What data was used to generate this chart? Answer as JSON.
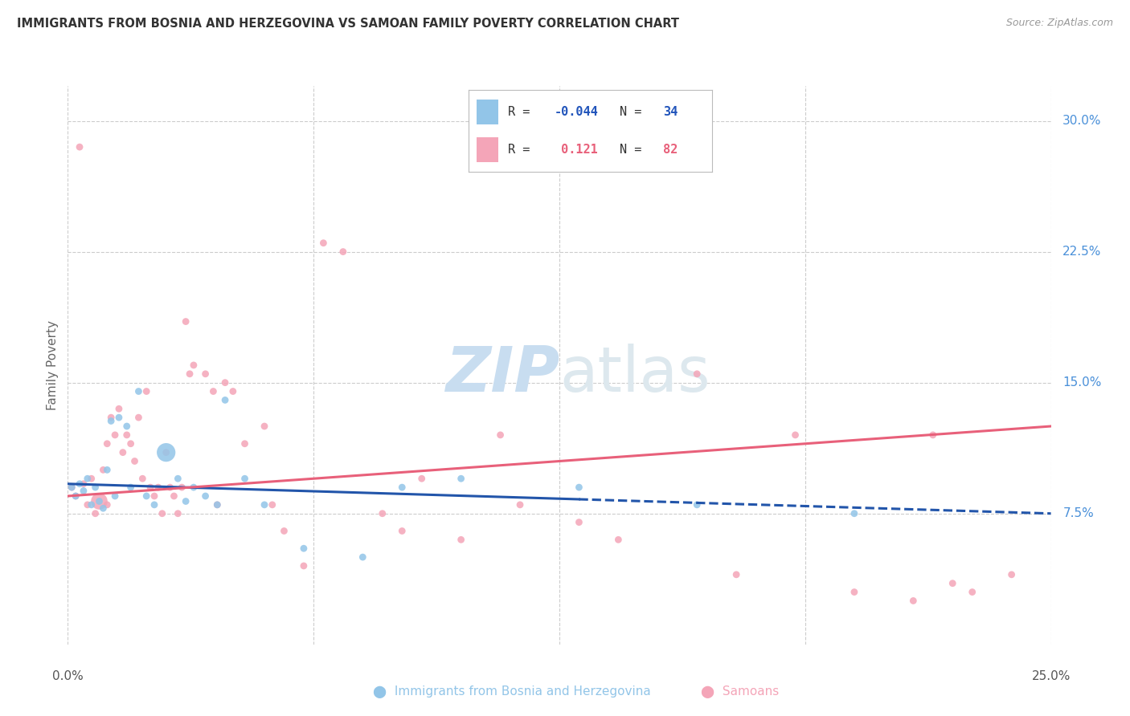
{
  "title": "IMMIGRANTS FROM BOSNIA AND HERZEGOVINA VS SAMOAN FAMILY POVERTY CORRELATION CHART",
  "source": "Source: ZipAtlas.com",
  "ylabel": "Family Poverty",
  "right_yticks": [
    7.5,
    15.0,
    22.5,
    30.0
  ],
  "blue_color": "#92c5e8",
  "pink_color": "#f4a5b8",
  "blue_line_color": "#2255aa",
  "pink_line_color": "#e8607a",
  "watermark_color": "#ddeeff",
  "xlim": [
    0,
    25
  ],
  "ylim": [
    0,
    32
  ],
  "blue_line": {
    "x0": 0,
    "y0": 9.2,
    "x1": 25,
    "y1": 7.5
  },
  "blue_line_solid_end": 13.0,
  "pink_line": {
    "x0": 0,
    "y0": 8.5,
    "x1": 25,
    "y1": 12.5
  },
  "blue_series_x": [
    0.1,
    0.2,
    0.3,
    0.4,
    0.5,
    0.6,
    0.7,
    0.8,
    0.9,
    1.0,
    1.1,
    1.2,
    1.3,
    1.5,
    1.6,
    1.8,
    2.0,
    2.2,
    2.5,
    2.8,
    3.0,
    3.2,
    3.5,
    3.8,
    4.0,
    4.5,
    5.0,
    6.0,
    7.5,
    8.5,
    10.0,
    13.0,
    16.0,
    20.0
  ],
  "blue_series_y": [
    9.0,
    8.5,
    9.2,
    8.8,
    9.5,
    8.0,
    9.0,
    8.2,
    7.8,
    10.0,
    12.8,
    8.5,
    13.0,
    12.5,
    9.0,
    14.5,
    8.5,
    8.0,
    11.0,
    9.5,
    8.2,
    9.0,
    8.5,
    8.0,
    14.0,
    9.5,
    8.0,
    5.5,
    5.0,
    9.0,
    9.5,
    9.0,
    8.0,
    7.5
  ],
  "blue_series_sizes": [
    40,
    40,
    40,
    40,
    40,
    40,
    40,
    40,
    40,
    40,
    40,
    40,
    40,
    40,
    40,
    40,
    40,
    40,
    280,
    40,
    40,
    40,
    40,
    40,
    40,
    40,
    40,
    40,
    40,
    40,
    40,
    40,
    40,
    40
  ],
  "pink_series_x": [
    0.1,
    0.2,
    0.3,
    0.4,
    0.5,
    0.6,
    0.7,
    0.8,
    0.9,
    1.0,
    1.0,
    1.1,
    1.2,
    1.3,
    1.4,
    1.5,
    1.6,
    1.7,
    1.8,
    1.9,
    2.0,
    2.1,
    2.2,
    2.3,
    2.4,
    2.5,
    2.6,
    2.7,
    2.8,
    2.9,
    3.0,
    3.1,
    3.2,
    3.5,
    3.7,
    3.8,
    4.0,
    4.2,
    4.5,
    5.0,
    5.2,
    5.5,
    6.0,
    6.5,
    7.0,
    8.0,
    8.5,
    9.0,
    10.0,
    11.0,
    11.5,
    13.0,
    14.0,
    16.0,
    17.0,
    18.5,
    20.0,
    21.5,
    22.0,
    22.5,
    23.0,
    24.0
  ],
  "pink_series_y": [
    9.0,
    8.5,
    28.5,
    9.2,
    8.0,
    9.5,
    7.5,
    8.2,
    10.0,
    11.5,
    8.0,
    13.0,
    12.0,
    13.5,
    11.0,
    12.0,
    11.5,
    10.5,
    13.0,
    9.5,
    14.5,
    9.0,
    8.5,
    9.0,
    7.5,
    11.0,
    9.0,
    8.5,
    7.5,
    9.0,
    18.5,
    15.5,
    16.0,
    15.5,
    14.5,
    8.0,
    15.0,
    14.5,
    11.5,
    12.5,
    8.0,
    6.5,
    4.5,
    23.0,
    22.5,
    7.5,
    6.5,
    9.5,
    6.0,
    12.0,
    8.0,
    7.0,
    6.0,
    15.5,
    4.0,
    12.0,
    3.0,
    2.5,
    12.0,
    3.5,
    3.0,
    4.0
  ],
  "pink_series_sizes": [
    40,
    40,
    40,
    40,
    40,
    40,
    40,
    220,
    40,
    40,
    40,
    40,
    40,
    40,
    40,
    40,
    40,
    40,
    40,
    40,
    40,
    40,
    40,
    40,
    40,
    40,
    40,
    40,
    40,
    40,
    40,
    40,
    40,
    40,
    40,
    40,
    40,
    40,
    40,
    40,
    40,
    40,
    40,
    40,
    40,
    40,
    40,
    40,
    40,
    40,
    40,
    40,
    40,
    40,
    40,
    40,
    40,
    40,
    40,
    40,
    40,
    40
  ]
}
